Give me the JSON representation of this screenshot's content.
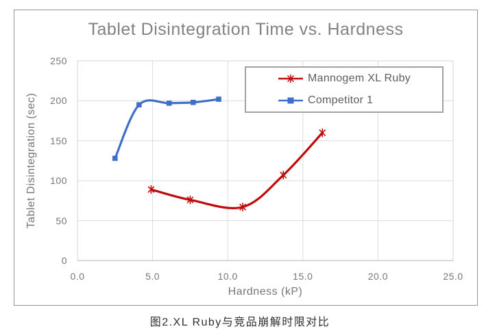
{
  "figure": {
    "caption": "图2.XL Ruby与竞品崩解时限对比"
  },
  "chart_data": {
    "type": "line",
    "title": "Tablet Disintegration Time vs. Hardness",
    "xlabel": "Hardness (kP)",
    "ylabel": "Tablet Disintegration (sec)",
    "xlim": [
      0,
      25
    ],
    "ylim": [
      0,
      250
    ],
    "x_ticks": [
      0,
      5,
      10,
      15,
      20,
      25
    ],
    "x_tick_labels": [
      "0.0",
      "5.0",
      "10.0",
      "15.0",
      "20.0",
      "25.0"
    ],
    "y_ticks": [
      0,
      50,
      100,
      150,
      200,
      250
    ],
    "y_tick_labels": [
      "0",
      "50",
      "100",
      "150",
      "200",
      "250"
    ],
    "grid": true,
    "legend_position": "top-right-inside",
    "smoothed_lines": true,
    "series": [
      {
        "name": "Mannogem XL Ruby",
        "color": "#c00a0a",
        "marker": "asterisk",
        "points": [
          [
            4.9,
            89
          ],
          [
            7.5,
            76
          ],
          [
            11.0,
            67
          ],
          [
            13.7,
            107
          ],
          [
            16.3,
            160
          ]
        ]
      },
      {
        "name": "Competitor 1",
        "color": "#3f6fc8",
        "marker": "square",
        "points": [
          [
            2.5,
            128
          ],
          [
            4.1,
            195
          ],
          [
            6.1,
            197
          ],
          [
            7.7,
            198
          ],
          [
            9.4,
            202
          ]
        ]
      }
    ],
    "colors": {
      "grid": "#dcdcdc",
      "plot_border": "#d4d4d4",
      "axis_line": "#c2c2c2",
      "text": "#767676",
      "title": "#828282",
      "frame_border": "#919191"
    }
  }
}
